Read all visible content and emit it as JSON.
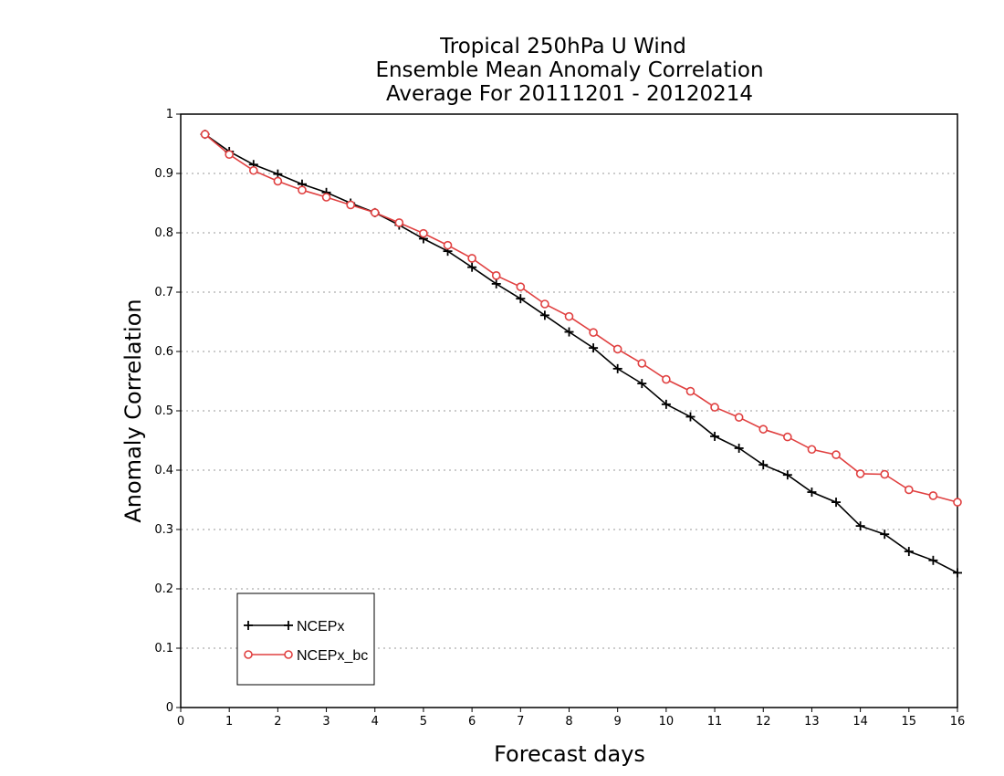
{
  "chart_data": {
    "type": "line",
    "title": [
      "Tropical 250hPa U Wind",
      "Ensemble Mean Anomaly Correlation",
      "Average For 20111201 - 20120214"
    ],
    "xlabel": "Forecast days",
    "ylabel": "Anomaly Correlation",
    "xlim": [
      0,
      16
    ],
    "ylim": [
      0,
      1
    ],
    "xticks": [
      "0",
      "1",
      "2",
      "3",
      "4",
      "5",
      "6",
      "7",
      "8",
      "9",
      "10",
      "11",
      "12",
      "13",
      "14",
      "15",
      "16"
    ],
    "yticks": [
      "0",
      "0.1",
      "0.2",
      "0.3",
      "0.4",
      "0.5",
      "0.6",
      "0.7",
      "0.8",
      "0.9",
      "1"
    ],
    "grid": true,
    "legend_position": "bottom-left",
    "x": [
      0.5,
      1,
      1.5,
      2,
      2.5,
      3,
      3.5,
      4,
      4.5,
      5,
      5.5,
      6,
      6.5,
      7,
      7.5,
      8,
      8.5,
      9,
      9.5,
      10,
      10.5,
      11,
      11.5,
      12,
      12.5,
      13,
      13.5,
      14,
      14.5,
      15,
      15.5,
      16
    ],
    "series": [
      {
        "name": "NCEPx",
        "color": "#000000",
        "marker": "plus",
        "values": [
          0.966,
          0.937,
          0.915,
          0.899,
          0.882,
          0.868,
          0.85,
          0.834,
          0.813,
          0.79,
          0.769,
          0.742,
          0.714,
          0.689,
          0.661,
          0.633,
          0.606,
          0.571,
          0.546,
          0.511,
          0.49,
          0.457,
          0.437,
          0.409,
          0.392,
          0.363,
          0.346,
          0.306,
          0.292,
          0.263,
          0.248,
          0.227
        ]
      },
      {
        "name": "NCEPx_bc",
        "color": "#e04040",
        "marker": "circle",
        "values": [
          0.966,
          0.932,
          0.905,
          0.887,
          0.872,
          0.86,
          0.847,
          0.834,
          0.817,
          0.799,
          0.779,
          0.757,
          0.728,
          0.709,
          0.68,
          0.659,
          0.632,
          0.604,
          0.58,
          0.553,
          0.533,
          0.506,
          0.489,
          0.469,
          0.456,
          0.435,
          0.426,
          0.394,
          0.393,
          0.367,
          0.357,
          0.346
        ]
      }
    ]
  }
}
